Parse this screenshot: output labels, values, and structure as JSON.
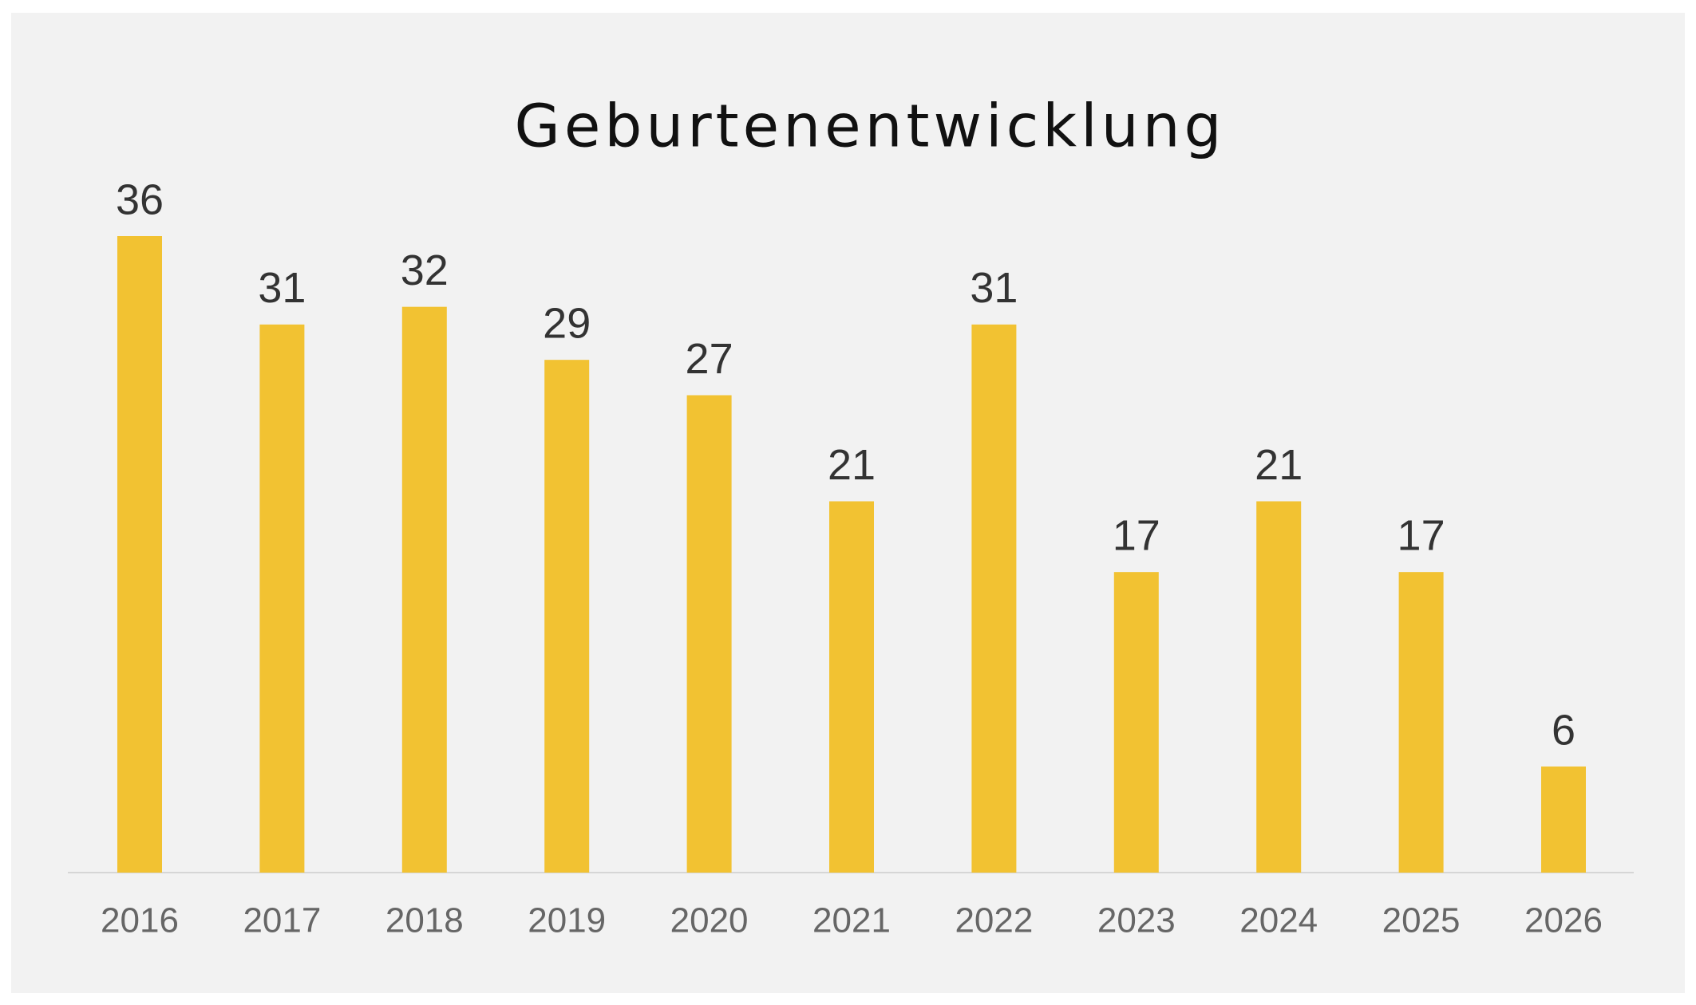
{
  "chart_data": {
    "type": "bar",
    "title": "Geburtenentwicklung",
    "categories": [
      "2016",
      "2017",
      "2018",
      "2019",
      "2020",
      "2021",
      "2022",
      "2023",
      "2024",
      "2025",
      "2026"
    ],
    "values": [
      36,
      31,
      32,
      29,
      27,
      21,
      31,
      17,
      21,
      17,
      6
    ],
    "color": "#f2c232",
    "ylim": [
      0,
      36
    ]
  }
}
